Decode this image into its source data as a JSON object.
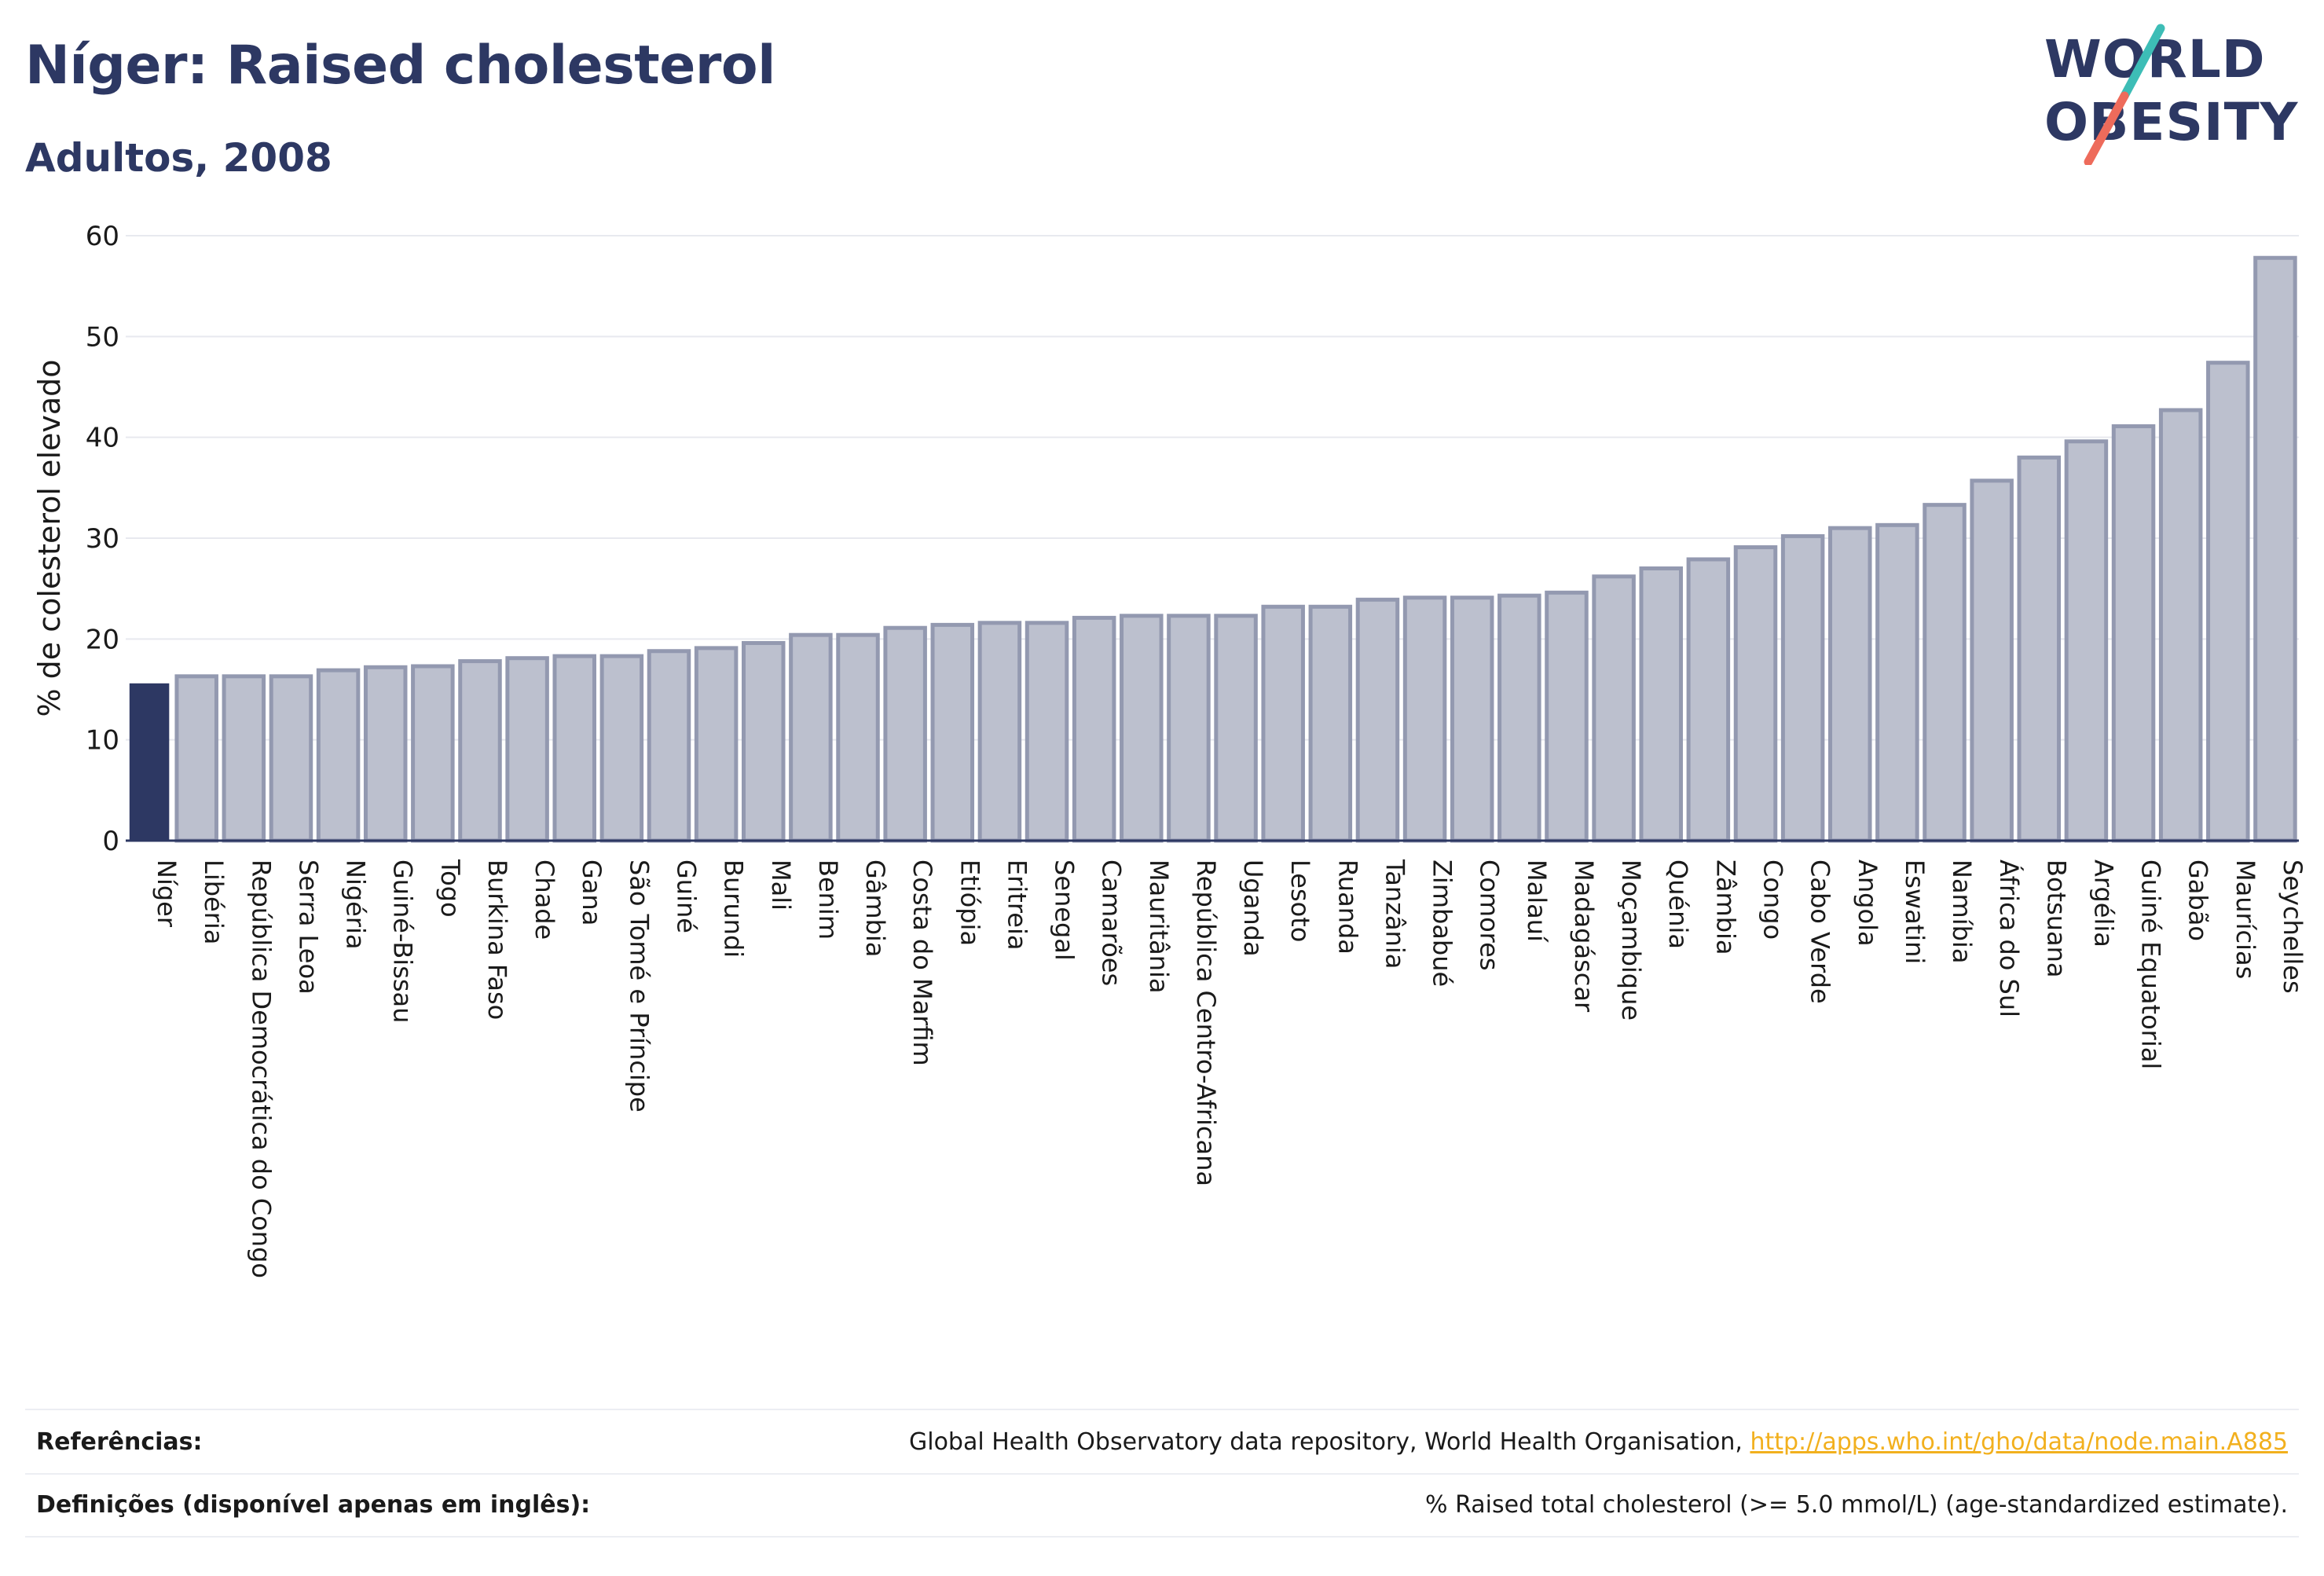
{
  "header": {
    "title": "Níger: Raised cholesterol",
    "subtitle": "Adultos, 2008"
  },
  "logo": {
    "line1": "WORLD",
    "line2": "OBESITY",
    "text_color": "#2d3863",
    "slash_colors": [
      "#3dbdb6",
      "#ee6b5b"
    ]
  },
  "colors": {
    "highlight_bar": "#2d3863",
    "other_bar_fill": "#bcc0ce",
    "other_bar_stroke": "#9399b0",
    "gridline": "#e8e9ef",
    "axis": "#2d3863"
  },
  "chart_data": {
    "type": "bar",
    "title": "Níger: Raised cholesterol",
    "subtitle": "Adultos, 2008",
    "xlabel": "",
    "ylabel": "% de colesterol elevado",
    "ylim": [
      0,
      60
    ],
    "yticks": [
      0,
      10,
      20,
      30,
      40,
      50,
      60
    ],
    "grid": true,
    "highlight_category": "Níger",
    "categories": [
      "Níger",
      "Libéria",
      "República Democrática do Congo",
      "Serra Leoa",
      "Nigéria",
      "Guiné-Bissau",
      "Togo",
      "Burkina Faso",
      "Chade",
      "Gana",
      "São Tomé e Príncipe",
      "Guiné",
      "Burundi",
      "Mali",
      "Benim",
      "Gâmbia",
      "Costa do Marfim",
      "Etiópia",
      "Eritreia",
      "Senegal",
      "Camarões",
      "Mauritânia",
      "República Centro-Africana",
      "Uganda",
      "Lesoto",
      "Ruanda",
      "Tanzânia",
      "Zimbabué",
      "Comores",
      "Malauí",
      "Madagáscar",
      "Moçambique",
      "Quénia",
      "Zâmbia",
      "Congo",
      "Cabo Verde",
      "Angola",
      "Eswatini",
      "Namíbia",
      "África do Sul",
      "Botsuana",
      "Argélia",
      "Guiné Equatorial",
      "Gabão",
      "Maurícias",
      "Seychelles"
    ],
    "values": [
      15.6,
      16.3,
      16.3,
      16.3,
      16.9,
      17.2,
      17.3,
      17.8,
      18.1,
      18.3,
      18.3,
      18.8,
      19.1,
      19.6,
      20.4,
      20.4,
      21.1,
      21.4,
      21.6,
      21.6,
      22.1,
      22.3,
      22.3,
      22.3,
      23.2,
      23.2,
      23.9,
      24.1,
      24.1,
      24.3,
      24.6,
      26.2,
      27.0,
      27.9,
      29.1,
      30.2,
      31.0,
      31.3,
      33.3,
      35.7,
      38.0,
      39.6,
      41.1,
      42.7,
      47.4,
      57.8
    ]
  },
  "footer": {
    "references_label": "Referências:",
    "references_text": "Global Health Observatory data repository, World Health Organisation,",
    "references_link": "http://apps.who.int/gho/data/node.main.A885",
    "definitions_label": "Definições (disponível apenas em inglês):",
    "definitions_text": "% Raised total cholesterol (>= 5.0 mmol/L) (age-standardized estimate)."
  }
}
